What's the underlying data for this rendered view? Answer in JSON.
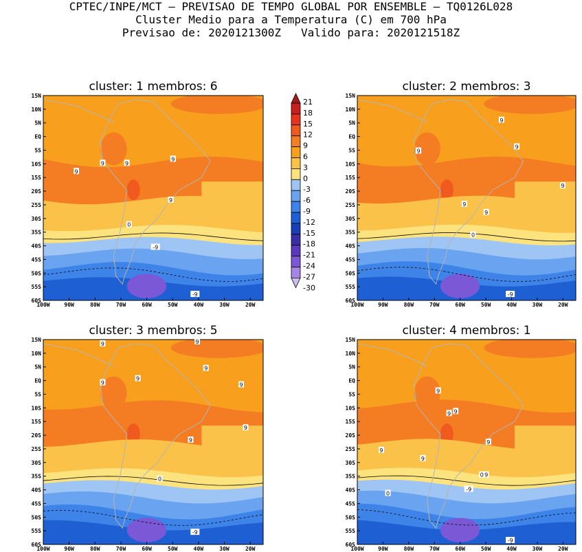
{
  "header": {
    "line1": "CPTEC/INPE/MCT — PREVISAO DE TEMPO GLOBAL POR ENSEMBLE — TQ0126L028",
    "line2": "Cluster Medio para a Temperatura (C) em 700 hPa",
    "line3": "Previsao de: 2020121300Z   Valido para: 2020121518Z"
  },
  "panels": [
    {
      "title": "cluster: 1   membros: 6"
    },
    {
      "title": "cluster: 2   membros: 3"
    },
    {
      "title": "cluster: 3   membros: 5"
    },
    {
      "title": "cluster: 4   membros: 1"
    }
  ],
  "map_axes": {
    "lat_labels": [
      "15N",
      "10N",
      "5N",
      "EQ",
      "5S",
      "10S",
      "15S",
      "20S",
      "25S",
      "30S",
      "35S",
      "40S",
      "45S",
      "50S",
      "55S",
      "60S"
    ],
    "lon_labels": [
      "100W",
      "90W",
      "80W",
      "70W",
      "60W",
      "50W",
      "40W",
      "30W",
      "20W"
    ]
  },
  "colorbar": {
    "levels": [
      "21",
      "18",
      "15",
      "12",
      "9",
      "6",
      "3",
      "0",
      "-3",
      "-6",
      "-9",
      "-12",
      "-15",
      "-18",
      "-21",
      "-24",
      "-27",
      "-30"
    ],
    "colors": [
      "#a51a1a",
      "#c81e1e",
      "#e8321e",
      "#f05a1e",
      "#f47d23",
      "#f8a01e",
      "#fbc24a",
      "#fde37e",
      "#9ec5f4",
      "#6aa4f0",
      "#3d83e8",
      "#1f5fd4",
      "#1b3fb8",
      "#3a2ea8",
      "#5b38c0",
      "#7a58d6",
      "#a487e4",
      "#cdbdf0"
    ]
  },
  "contour_labels": [
    [
      "9",
      "9",
      "9",
      "9",
      "9",
      "0",
      "-9",
      "-9"
    ],
    [
      "9",
      "9",
      "9",
      "9",
      "9",
      "9",
      "0",
      "-9"
    ],
    [
      "9",
      "9",
      "9",
      "9",
      "9",
      "9",
      "9",
      "9",
      "0",
      "-9"
    ],
    [
      "9",
      "9",
      "9",
      "9",
      "9",
      "9",
      "9",
      "0",
      "0",
      "-9",
      "-9"
    ]
  ],
  "colors": {
    "orange": "#f8a01e",
    "dark_orange": "#f47d23",
    "red_orange": "#f05a1e",
    "light_orange": "#fbc24a",
    "yellow": "#fde37e",
    "light_blue": "#9ec5f4",
    "mid_blue": "#6aa4f0",
    "blue": "#3d83e8",
    "dark_blue": "#1f5fd4",
    "purple": "#7a58d6",
    "boundary_gray": "#b4b4b4"
  }
}
